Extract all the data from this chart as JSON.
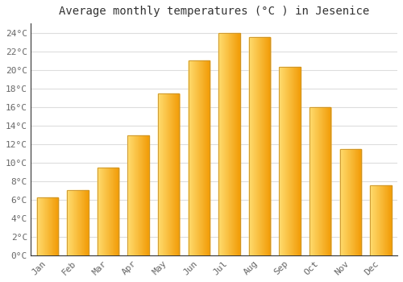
{
  "months": [
    "Jan",
    "Feb",
    "Mar",
    "Apr",
    "May",
    "Jun",
    "Jul",
    "Aug",
    "Sep",
    "Oct",
    "Nov",
    "Dec"
  ],
  "values": [
    6.3,
    7.1,
    9.5,
    13.0,
    17.5,
    21.0,
    24.0,
    23.5,
    20.3,
    16.0,
    11.5,
    7.6
  ],
  "bar_color_left": "#FFD966",
  "bar_color_right": "#F5A800",
  "bar_edge_color": "#C8922A",
  "title": "Average monthly temperatures (°C ) in Jesenice",
  "ylim": [
    0,
    25
  ],
  "yticks": [
    0,
    2,
    4,
    6,
    8,
    10,
    12,
    14,
    16,
    18,
    20,
    22,
    24
  ],
  "ytick_labels": [
    "0°C",
    "2°C",
    "4°C",
    "6°C",
    "8°C",
    "10°C",
    "12°C",
    "14°C",
    "16°C",
    "18°C",
    "20°C",
    "22°C",
    "24°C"
  ],
  "title_fontsize": 10,
  "tick_fontsize": 8,
  "background_color": "#FFFFFF",
  "grid_color": "#DDDDDD",
  "figure_bg": "#FFFFFF",
  "bar_width": 0.7
}
